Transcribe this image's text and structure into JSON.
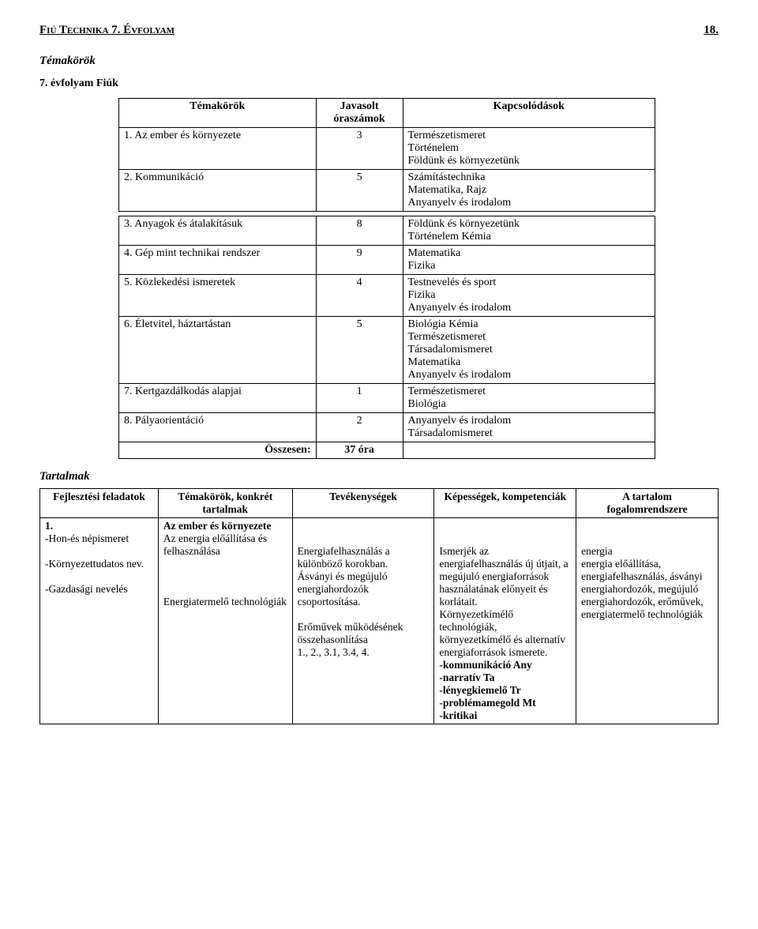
{
  "header": {
    "left": "Fiú Technika 7. Évfolyam",
    "right": "18."
  },
  "section_title": "Témakörök",
  "grade_line": "7. évfolyam Fiúk",
  "table1": {
    "headers": [
      "Témakörök",
      "Javasolt óraszámok",
      "Kapcsolódások"
    ],
    "rows_top": [
      {
        "n": "1.",
        "name": "Az ember és környezete",
        "hours": "3",
        "links": "Természetismeret\nTörténelem\nFöldünk és környezetünk"
      },
      {
        "n": "2.",
        "name": "Kommunikáció",
        "hours": "5",
        "links": "Számítástechnika\nMatematika, Rajz\nAnyanyelv és irodalom"
      }
    ],
    "rows_bottom": [
      {
        "n": "3.",
        "name": "Anyagok és átalakításuk",
        "hours": "8",
        "links": "Földünk és környezetünk\nTörténelem  Kémia"
      },
      {
        "n": "4.",
        "name": "Gép mint technikai rendszer",
        "hours": "9",
        "links": "Matematika\nFizika"
      },
      {
        "n": "5.",
        "name": "Közlekedési ismeretek",
        "hours": "4",
        "links": "Testnevelés és sport\nFizika\nAnyanyelv és irodalom"
      },
      {
        "n": "6.",
        "name": "Életvitel, háztartástan",
        "hours": "5",
        "links": "Biológia  Kémia\nTermészetismeret\nTársadalomismeret\nMatematika\nAnyanyelv és irodalom"
      },
      {
        "n": "7.",
        "name": "Kertgazdálkodás alapjai",
        "hours": "1",
        "links": "Természetismeret\nBiológia"
      },
      {
        "n": "8.",
        "name": "Pályaorientáció",
        "hours": "2",
        "links": "Anyanyelv és irodalom\nTársadalomismeret"
      }
    ],
    "total_label": "Összesen:",
    "total_hours": "37 óra"
  },
  "tartalmak_title": "Tartalmak",
  "table2": {
    "headers": [
      "Fejlesztési feladatok",
      "Témakörök, konkrét tartalmak",
      "Tevékenységek",
      "Képességek, kompetenciák",
      "A tartalom fogalomrendszere"
    ],
    "colA": "1.\n-Hon-és népismeret\n\n-Környezettudatos nev.\n\n-Gazdasági nevelés",
    "colB_bold": "Az ember és környezete",
    "colB_rest": "Az energia előállítása és felhasználása\n\n\n\nEnergiatermelő technológiák",
    "colC": "\n\nEnergiafelhasználás a különböző korokban.\nÁsványi és megújuló energiahordozók csoportosítása.\n\nErőművek működésének összehasonlítása\n1., 2., 3.1, 3.4, 4.",
    "colD": "\n\nIsmerjék az energiafelhasználás új útjait, a megújuló energiaforrások használatának előnyeit és korlátait.\nKörnyezetkímélő technológiák, környezetkímélő és alternatív energiaforrások ismerete.\n-kommunikáció  Any\n-narratív            Ta\n-lényegkiemelő   Tr\n-problémamegold  Mt\n-kritikai",
    "colE": "\n\nenergia\nenergia előállítása, energiafelhasználás, ásványi energiahordozók, megújuló energiahordozók, erőművek, energiatermelő technológiák"
  }
}
